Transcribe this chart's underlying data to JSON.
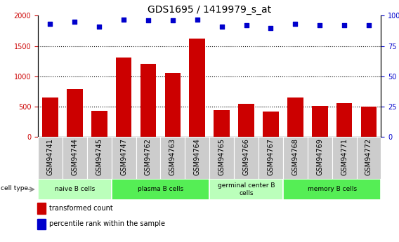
{
  "title": "GDS1695 / 1419979_s_at",
  "samples": [
    "GSM94741",
    "GSM94744",
    "GSM94745",
    "GSM94747",
    "GSM94762",
    "GSM94763",
    "GSM94764",
    "GSM94765",
    "GSM94766",
    "GSM94767",
    "GSM94768",
    "GSM94769",
    "GSM94771",
    "GSM94772"
  ],
  "bar_values": [
    650,
    790,
    430,
    1310,
    1200,
    1050,
    1620,
    440,
    545,
    415,
    650,
    510,
    560,
    500
  ],
  "percentile_values": [
    93,
    95,
    91,
    97,
    96,
    96,
    97,
    91,
    92,
    90,
    93,
    92,
    92,
    92
  ],
  "bar_color": "#cc0000",
  "dot_color": "#0000cc",
  "ylim_left": [
    0,
    2000
  ],
  "ylim_right": [
    0,
    100
  ],
  "yticks_left": [
    0,
    500,
    1000,
    1500,
    2000
  ],
  "yticks_right": [
    0,
    25,
    50,
    75,
    100
  ],
  "ytick_labels_left": [
    "0",
    "500",
    "1000",
    "1500",
    "2000"
  ],
  "ytick_labels_right": [
    "0",
    "25",
    "50",
    "75",
    "100%"
  ],
  "cell_groups": [
    {
      "label": "naive B cells",
      "start": 0,
      "end": 3,
      "color": "#bbffbb"
    },
    {
      "label": "plasma B cells",
      "start": 3,
      "end": 7,
      "color": "#55ee55"
    },
    {
      "label": "germinal center B\ncells",
      "start": 7,
      "end": 10,
      "color": "#bbffbb"
    },
    {
      "label": "memory B cells",
      "start": 10,
      "end": 14,
      "color": "#55ee55"
    }
  ],
  "cell_type_label": "cell type",
  "legend_bar_label": "transformed count",
  "legend_dot_label": "percentile rank within the sample",
  "bg_color": "#ffffff",
  "tick_area_bg": "#cccccc",
  "title_fontsize": 10,
  "axis_fontsize": 7,
  "label_fontsize": 7.5
}
